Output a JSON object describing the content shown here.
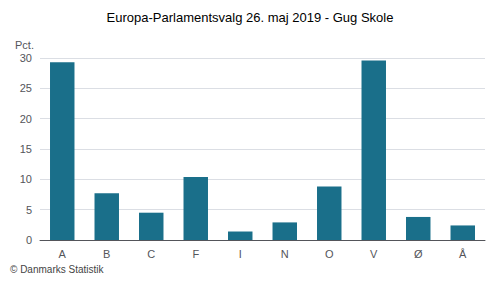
{
  "chart_data": {
    "type": "bar",
    "title": "Europa-Parlamentsvalg 26. maj 2019 - Gug Skole",
    "categories": [
      "A",
      "B",
      "C",
      "F",
      "I",
      "N",
      "O",
      "V",
      "Ø",
      "Å"
    ],
    "values": [
      29.3,
      7.7,
      4.5,
      10.4,
      1.4,
      2.9,
      8.8,
      29.6,
      3.8,
      2.4
    ],
    "color": "#1a6f8a",
    "ylabel": "Pct.",
    "footer": "© Danmarks Statistik",
    "ylim": [
      0,
      30
    ],
    "yticks": [
      0,
      5,
      10,
      15,
      20,
      25,
      30
    ],
    "grid": true
  }
}
